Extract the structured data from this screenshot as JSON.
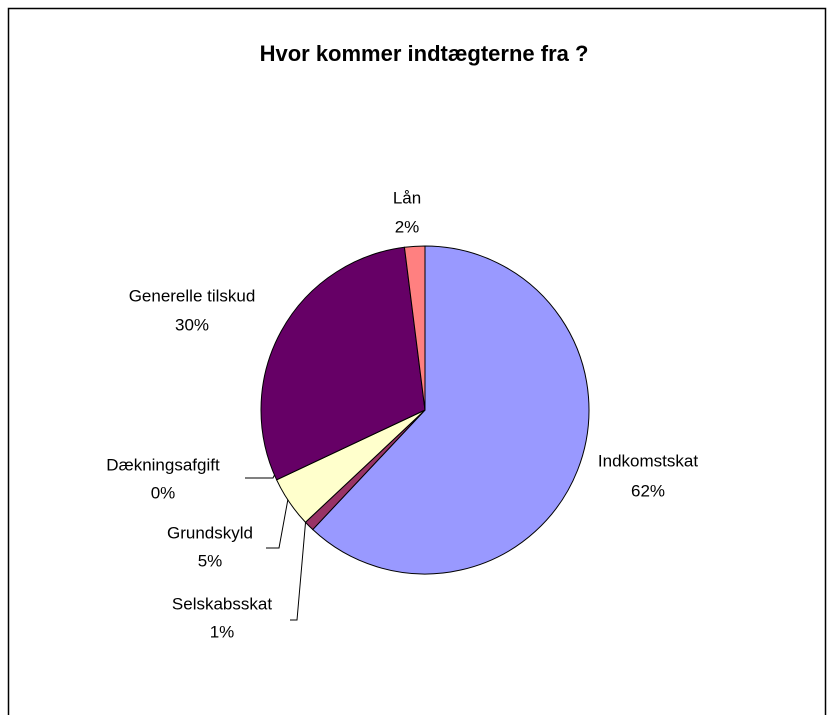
{
  "chart_data": {
    "type": "pie",
    "title": "Hvor kommer indtægterne fra ?",
    "categories": [
      "Indkomstskat",
      "Selskabsskat",
      "Grundskyld",
      "Dækningsafgift",
      "Generelle tilskud",
      "Lån"
    ],
    "values": [
      62,
      1,
      5,
      0,
      30,
      2
    ],
    "value_labels": [
      "62%",
      "1%",
      "5%",
      "0%",
      "30%",
      "2%"
    ],
    "colors": [
      "#9999ff",
      "#993366",
      "#ffffcc",
      "#ccffff",
      "#660066",
      "#ff8080"
    ]
  }
}
